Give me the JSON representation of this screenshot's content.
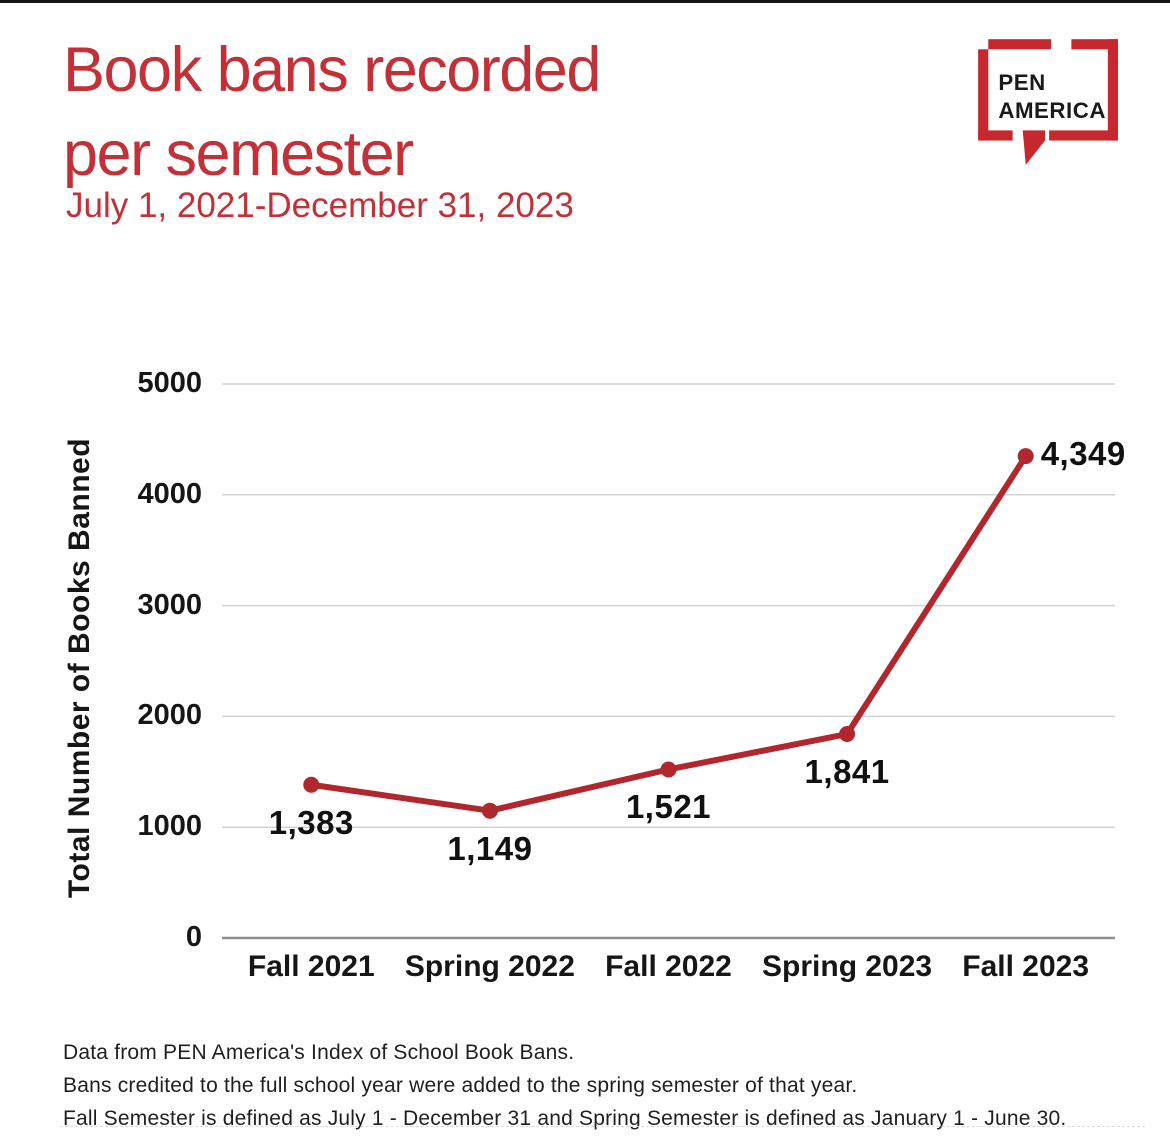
{
  "page": {
    "title_line1": "Book bans recorded",
    "title_line2": "per semester",
    "subtitle": "July 1, 2021-December 31, 2023"
  },
  "logo": {
    "line1": "PEN",
    "line2": "AMERICA"
  },
  "colors": {
    "title_red": "#c23038",
    "line_red": "#b0272e",
    "logo_red": "#c6282d",
    "grid_gray": "#d3d3d3",
    "axis_gray": "#8f8f8f",
    "text_black": "#161616"
  },
  "chart_data": {
    "type": "line",
    "title": "Book bans recorded per semester",
    "subtitle": "July 1, 2021-December 31, 2023",
    "categories": [
      "Fall 2021",
      "Spring 2022",
      "Fall 2022",
      "Spring 2023",
      "Fall 2023"
    ],
    "values": [
      1383,
      1149,
      1521,
      1841,
      4349
    ],
    "value_labels": [
      "1,383",
      "1,149",
      "1,521",
      "1,841",
      "4,349"
    ],
    "series_name": "Total Number of Books Banned",
    "xlabel": "",
    "ylabel": "Total Number of Books Banned",
    "ylim": [
      0,
      5000
    ],
    "yticks": [
      0,
      1000,
      2000,
      3000,
      4000,
      5000
    ],
    "ytick_labels": [
      "0",
      "1000",
      "2000",
      "3000",
      "4000",
      "5000"
    ],
    "grid": "horizontal",
    "legend": "none"
  },
  "footer": {
    "lines": [
      "Data from PEN America's Index of School Book Bans.",
      "Bans credited to the full school year were added to the spring semester of that year.",
      "Fall Semester is defined as July 1 - December 31 and Spring Semester is defined as January 1 - June 30."
    ]
  }
}
